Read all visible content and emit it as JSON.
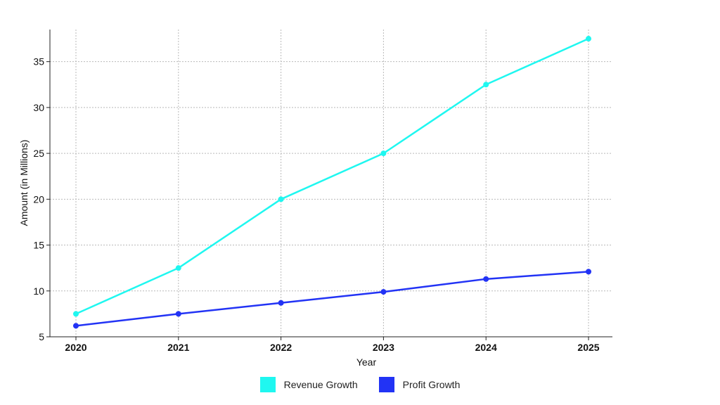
{
  "chart_data": {
    "type": "line",
    "title": "",
    "xlabel": "Year",
    "ylabel": "Amount (in Millions)",
    "categories": [
      "2020",
      "2021",
      "2022",
      "2023",
      "2024",
      "2025"
    ],
    "ylim": [
      5,
      38.5
    ],
    "yticks": [
      5,
      10,
      15,
      20,
      25,
      30,
      35
    ],
    "grid": true,
    "legend_position": "bottom",
    "series": [
      {
        "name": "Revenue Growth",
        "color": "#1ff7f0",
        "values": [
          7.5,
          12.5,
          20,
          25,
          32.5,
          37.5
        ]
      },
      {
        "name": "Profit Growth",
        "color": "#2233f5",
        "values": [
          6.2,
          7.5,
          8.7,
          9.9,
          11.3,
          12.1
        ]
      }
    ]
  }
}
